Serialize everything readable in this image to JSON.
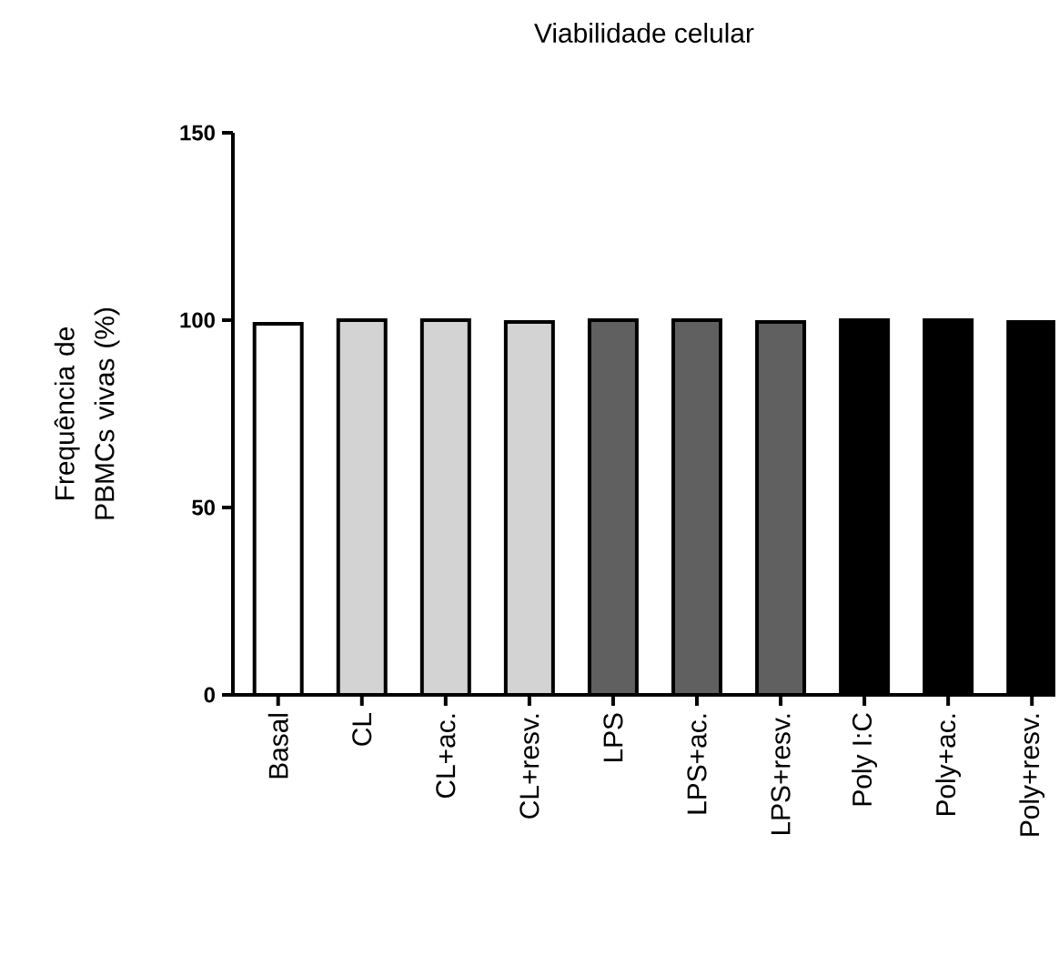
{
  "chart_data": {
    "type": "bar",
    "title": "Viabilidade celular",
    "ylabel": "Frequência de PBMCs vivas (%)",
    "categories": [
      "Basal",
      "CL",
      "CL+ac.",
      "CL+resv.",
      "LPS",
      "LPS+ac.",
      "LPS+resv.",
      "Poly I:C",
      "Poly+ac.",
      "Poly+resv."
    ],
    "values": [
      99,
      100,
      100,
      99.5,
      100,
      100,
      99.5,
      100,
      100,
      99.5
    ],
    "colors": [
      "#ffffff",
      "#d3d3d3",
      "#d3d3d3",
      "#d3d3d3",
      "#606060",
      "#606060",
      "#606060",
      "#000000",
      "#000000",
      "#000000"
    ],
    "ylim": [
      0,
      150
    ],
    "yticks": [
      0,
      50,
      100,
      150
    ],
    "grid": false
  }
}
